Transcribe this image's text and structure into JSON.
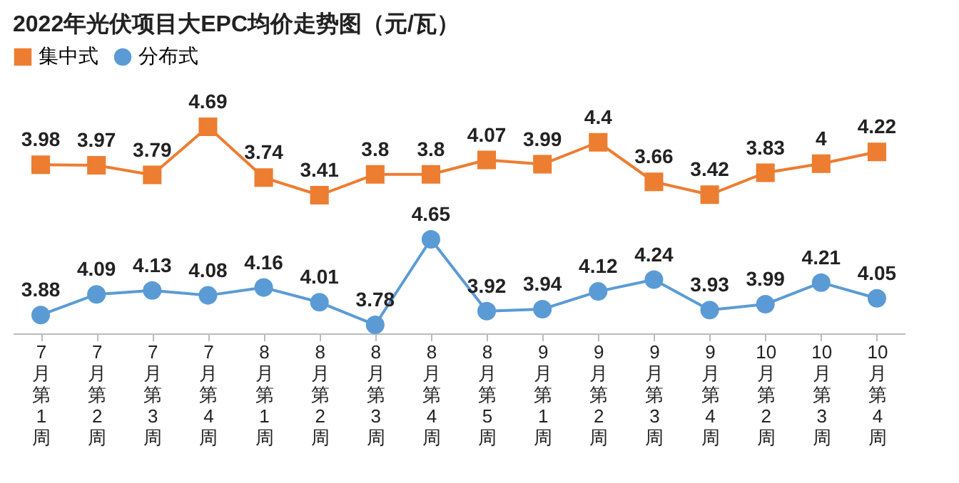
{
  "chart_data": [
    {
      "type": "line",
      "title": "2022年光伏项目大EPC均价走势图（元/瓦）",
      "categories": [
        "7月第1周",
        "7月第2周",
        "7月第3周",
        "7月第4周",
        "8月第1周",
        "8月第2周",
        "8月第3周",
        "8月第4周",
        "8月第5周",
        "9月第1周",
        "9月第2周",
        "9月第3周",
        "9月第4周",
        "10月第2周",
        "10月第3周",
        "10月第4周"
      ],
      "series": [
        {
          "name": "集中式",
          "color": "#ed7d31",
          "marker": "square",
          "values": [
            3.98,
            3.97,
            3.79,
            4.69,
            3.74,
            3.41,
            3.8,
            3.8,
            4.07,
            3.99,
            4.4,
            3.66,
            3.42,
            3.83,
            4,
            4.22
          ]
        }
      ],
      "data_labels": true,
      "legend": "top",
      "tick_labels": false
    },
    {
      "type": "line",
      "categories": [
        "7月第1周",
        "7月第2周",
        "7月第3周",
        "7月第4周",
        "8月第1周",
        "8月第2周",
        "8月第3周",
        "8月第4周",
        "8月第5周",
        "9月第1周",
        "9月第2周",
        "9月第3周",
        "9月第4周",
        "10月第2周",
        "10月第3周",
        "10月第4周"
      ],
      "series": [
        {
          "name": "分布式",
          "color": "#5b9bd5",
          "marker": "circle",
          "values": [
            3.88,
            4.09,
            4.13,
            4.08,
            4.16,
            4.01,
            3.78,
            4.65,
            3.92,
            3.94,
            4.12,
            4.24,
            3.93,
            3.99,
            4.21,
            4.05
          ]
        }
      ],
      "data_labels": true,
      "legend": "top",
      "tick_labels": "x"
    }
  ]
}
